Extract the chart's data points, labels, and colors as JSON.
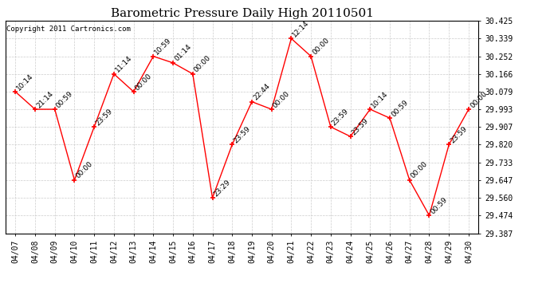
{
  "title": "Barometric Pressure Daily High 20110501",
  "copyright": "Copyright 2011 Cartronics.com",
  "background_color": "#ffffff",
  "line_color": "#ff0000",
  "marker_color": "#ff0000",
  "grid_color": "#cccccc",
  "text_color": "#000000",
  "dates": [
    "04/07",
    "04/08",
    "04/09",
    "04/10",
    "04/11",
    "04/12",
    "04/13",
    "04/14",
    "04/15",
    "04/16",
    "04/17",
    "04/18",
    "04/19",
    "04/20",
    "04/21",
    "04/22",
    "04/23",
    "04/24",
    "04/25",
    "04/26",
    "04/27",
    "04/28",
    "04/29",
    "04/30"
  ],
  "values": [
    30.079,
    29.993,
    29.993,
    29.647,
    29.907,
    30.166,
    30.079,
    30.252,
    30.22,
    30.166,
    29.56,
    29.82,
    30.03,
    29.993,
    30.339,
    30.252,
    29.907,
    29.86,
    29.993,
    29.95,
    29.647,
    29.474,
    29.82,
    29.993
  ],
  "timestamps": [
    "10:14",
    "21:14",
    "00:59",
    "00:00",
    "23:59",
    "11:14",
    "00:00",
    "10:59",
    "01:14",
    "00:00",
    "23:29",
    "23:59",
    "22:44",
    "00:00",
    "12:14",
    "00:00",
    "23:59",
    "23:59",
    "10:14",
    "00:59",
    "00:00",
    "00:59",
    "23:59",
    "00:00"
  ],
  "ylim": [
    29.387,
    30.425
  ],
  "yticks": [
    29.387,
    29.474,
    29.56,
    29.647,
    29.733,
    29.82,
    29.907,
    29.993,
    30.079,
    30.166,
    30.252,
    30.339,
    30.425
  ],
  "title_fontsize": 11,
  "tick_fontsize": 7,
  "annotation_fontsize": 6.5,
  "copyright_fontsize": 6.5
}
